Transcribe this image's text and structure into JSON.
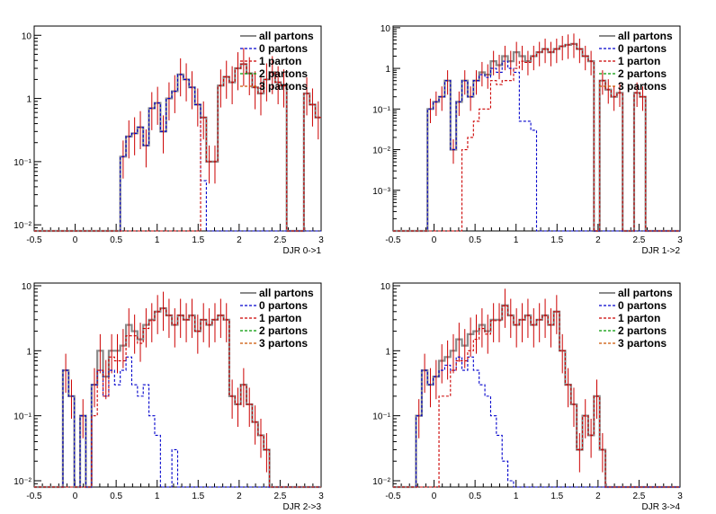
{
  "style": {
    "colors": {
      "all_partons": "#8a8a8a",
      "p0": "#0000cc",
      "p1": "#cc0000",
      "p2": "#009900",
      "p3": "#cc5500",
      "errorbar": "#cc0000",
      "axis": "#000000"
    }
  },
  "chart_data": [
    {
      "type": "histogram",
      "xlabel": "DJR 0->1",
      "x_ticks": [
        "-0.5",
        "0",
        "0.5",
        "1",
        "1.5",
        "2",
        "2.5",
        "3"
      ],
      "y_ticks": [
        "10⁻²",
        "10⁻¹",
        "1",
        "10"
      ],
      "xlim": [
        -0.5,
        3.0
      ],
      "ylim": [
        0.008,
        14
      ],
      "y_scale": "log",
      "legend_position": "top-right",
      "bins": 50,
      "series": [
        {
          "name": "all partons",
          "values": [
            0,
            0,
            0,
            0,
            0,
            0,
            0,
            0,
            0,
            0,
            0,
            0,
            0,
            0,
            0,
            0.12,
            0.25,
            0.28,
            0.35,
            0.18,
            0.7,
            0.85,
            0.3,
            1.0,
            1.3,
            2.4,
            2.0,
            1.5,
            0.8,
            0.5,
            0.1,
            0.1,
            1.6,
            2.2,
            1.8,
            3.0,
            3.5,
            2.5,
            1.5,
            1.2,
            2.0,
            2.6,
            1.8,
            1.6,
            0,
            0,
            0,
            1.2,
            0.8,
            0.5
          ]
        },
        {
          "name": "0 partons",
          "values": [
            0,
            0,
            0,
            0,
            0,
            0,
            0,
            0,
            0,
            0,
            0,
            0,
            0,
            0,
            0,
            0.12,
            0.25,
            0.28,
            0.35,
            0.18,
            0.7,
            0.85,
            0.3,
            1.0,
            1.3,
            2.4,
            2.0,
            1.5,
            0.8,
            0.05,
            0,
            0,
            0,
            0,
            0,
            0,
            0,
            0,
            0,
            0,
            0,
            0,
            0,
            0,
            0,
            0,
            0,
            0,
            0,
            0
          ]
        },
        {
          "name": "1 parton",
          "values": [
            0,
            0,
            0,
            0,
            0,
            0,
            0,
            0,
            0,
            0,
            0,
            0,
            0,
            0,
            0,
            0,
            0,
            0,
            0,
            0,
            0,
            0,
            0,
            0,
            0,
            0,
            0,
            0,
            0,
            0.5,
            0.1,
            0.1,
            1.6,
            2.2,
            1.8,
            3.0,
            3.5,
            2.5,
            1.5,
            1.2,
            2.0,
            2.6,
            1.8,
            1.6,
            0,
            0,
            0,
            1.2,
            0.8,
            0.5
          ]
        },
        {
          "name": "2 partons",
          "values": []
        },
        {
          "name": "3 partons",
          "values": []
        }
      ]
    },
    {
      "type": "histogram",
      "xlabel": "DJR 1->2",
      "x_ticks": [
        "-0.5",
        "0",
        "0.5",
        "1",
        "1.5",
        "2",
        "2.5",
        "3"
      ],
      "y_ticks": [
        "10⁻³",
        "10⁻²",
        "10⁻¹",
        "1",
        "10"
      ],
      "xlim": [
        -0.5,
        3.0
      ],
      "ylim": [
        0.0001,
        11
      ],
      "y_scale": "log",
      "legend_position": "top-right",
      "bins": 50,
      "series": [
        {
          "name": "all partons",
          "values": [
            0,
            0,
            0,
            0,
            0,
            0,
            0.1,
            0.15,
            0.2,
            0.5,
            0.01,
            0.15,
            0.5,
            0.2,
            0.5,
            0.8,
            0.7,
            1.5,
            1.2,
            2.0,
            1.5,
            2.5,
            2.0,
            1.5,
            2.0,
            2.5,
            3.0,
            2.5,
            3.0,
            3.5,
            3.8,
            4.0,
            3.0,
            2.0,
            1.5,
            0,
            0.5,
            0.3,
            0.2,
            0.25,
            0,
            0,
            0.25,
            0.2,
            0,
            0,
            0,
            0,
            0,
            0
          ]
        },
        {
          "name": "0 partons",
          "values": [
            0,
            0,
            0,
            0,
            0,
            0,
            0.1,
            0.15,
            0.2,
            0.5,
            0.01,
            0.15,
            0.5,
            0.2,
            0.5,
            0.7,
            0.6,
            1.0,
            0.8,
            1.5,
            1.0,
            0.8,
            0.05,
            0.05,
            0.03,
            0,
            0,
            0,
            0,
            0,
            0,
            0,
            0,
            0,
            0,
            0,
            0,
            0,
            0,
            0,
            0,
            0,
            0,
            0,
            0,
            0,
            0,
            0,
            0,
            0
          ]
        },
        {
          "name": "1 parton",
          "values": [
            0,
            0,
            0,
            0,
            0,
            0,
            0,
            0,
            0,
            0,
            0,
            0,
            0.01,
            0.02,
            0.05,
            0.1,
            0.1,
            0.5,
            0.4,
            0.5,
            0.5,
            1.0,
            1.5,
            1.4,
            2.0,
            2.5,
            3.0,
            2.5,
            3.0,
            3.5,
            3.8,
            4.0,
            3.0,
            2.0,
            1.5,
            0,
            0.5,
            0.3,
            0.2,
            0.25,
            0,
            0,
            0.25,
            0.2,
            0,
            0,
            0,
            0,
            0,
            0
          ]
        },
        {
          "name": "2 partons",
          "values": []
        },
        {
          "name": "3 partons",
          "values": []
        }
      ]
    },
    {
      "type": "histogram",
      "xlabel": "DJR 2->3",
      "x_ticks": [
        "-0.5",
        "0",
        "0.5",
        "1",
        "1.5",
        "2",
        "2.5",
        "3"
      ],
      "y_ticks": [
        "10⁻²",
        "10⁻¹",
        "1",
        "10"
      ],
      "xlim": [
        -0.5,
        3.0
      ],
      "ylim": [
        0.008,
        11
      ],
      "y_scale": "log",
      "legend_position": "top-right",
      "bins": 50,
      "series": [
        {
          "name": "all partons",
          "values": [
            0,
            0,
            0,
            0,
            0,
            0.5,
            0.2,
            0,
            0.1,
            0,
            0.3,
            1.0,
            0.4,
            1.0,
            1.0,
            1.2,
            2.5,
            2.0,
            1.5,
            2.5,
            3.0,
            4.0,
            4.5,
            3.5,
            2.5,
            3.5,
            3.0,
            3.5,
            2.0,
            3.0,
            2.5,
            3.0,
            3.5,
            3.0,
            0.2,
            0.15,
            0.3,
            0.15,
            0.08,
            0.05,
            0.03,
            0,
            0,
            0,
            0,
            0,
            0,
            0,
            0,
            0
          ]
        },
        {
          "name": "0 partons",
          "values": [
            0,
            0,
            0,
            0,
            0,
            0.5,
            0.2,
            0,
            0.1,
            0,
            0.3,
            0.5,
            0.2,
            0.5,
            0.3,
            0.5,
            0.8,
            0.3,
            0.2,
            0.3,
            0.1,
            0.05,
            0,
            0,
            0.03,
            0,
            0,
            0,
            0,
            0,
            0,
            0,
            0,
            0,
            0,
            0,
            0,
            0,
            0,
            0,
            0,
            0,
            0,
            0,
            0,
            0,
            0,
            0,
            0,
            0
          ]
        },
        {
          "name": "1 parton",
          "values": [
            0,
            0,
            0,
            0,
            0,
            0,
            0,
            0,
            0,
            0,
            0.1,
            0.5,
            0.2,
            0.8,
            0.7,
            0.7,
            1.7,
            1.7,
            1.3,
            2.2,
            2.9,
            4.0,
            4.5,
            3.5,
            2.5,
            3.5,
            3.0,
            3.5,
            2.0,
            3.0,
            2.5,
            3.0,
            3.5,
            3.0,
            0.2,
            0.15,
            0.3,
            0.15,
            0.08,
            0.05,
            0.03,
            0,
            0,
            0,
            0,
            0,
            0,
            0,
            0,
            0
          ]
        },
        {
          "name": "2 partons",
          "values": []
        },
        {
          "name": "3 partons",
          "values": []
        }
      ]
    },
    {
      "type": "histogram",
      "xlabel": "DJR 3->4",
      "x_ticks": [
        "-0.5",
        "0",
        "0.5",
        "1",
        "1.5",
        "2",
        "2.5",
        "3"
      ],
      "y_ticks": [
        "10⁻²",
        "10⁻¹",
        "1",
        "10"
      ],
      "xlim": [
        -0.5,
        3.0
      ],
      "ylim": [
        0.008,
        11
      ],
      "y_scale": "log",
      "legend_position": "top-right",
      "bins": 50,
      "series": [
        {
          "name": "all partons",
          "values": [
            0,
            0,
            0,
            0,
            0.1,
            0.5,
            0.3,
            0.4,
            0.7,
            0.8,
            1.0,
            1.5,
            1.2,
            1.8,
            2.0,
            2.5,
            2.0,
            3.0,
            3.0,
            5.0,
            3.5,
            2.5,
            3.0,
            3.5,
            2.5,
            3.0,
            3.5,
            2.5,
            4.0,
            1.0,
            0.3,
            0.15,
            0.03,
            0.1,
            0.05,
            0.2,
            0.03,
            0,
            0,
            0,
            0,
            0,
            0,
            0,
            0,
            0,
            0,
            0,
            0,
            0
          ]
        },
        {
          "name": "0 partons",
          "values": [
            0,
            0,
            0,
            0,
            0.1,
            0.5,
            0.3,
            0.4,
            0.5,
            0.6,
            0.5,
            0.8,
            0.5,
            0.8,
            0.5,
            0.3,
            0.2,
            0.1,
            0.05,
            0.02,
            0.01,
            0,
            0,
            0,
            0,
            0,
            0,
            0,
            0,
            0,
            0,
            0,
            0,
            0,
            0,
            0,
            0,
            0,
            0,
            0,
            0,
            0,
            0,
            0,
            0,
            0,
            0,
            0,
            0,
            0
          ]
        },
        {
          "name": "1 parton",
          "values": [
            0,
            0,
            0,
            0,
            0,
            0,
            0,
            0,
            0.2,
            0.2,
            0.5,
            0.7,
            0.7,
            1.0,
            1.5,
            2.2,
            1.8,
            2.9,
            2.9,
            4.9,
            3.5,
            2.5,
            3.0,
            3.5,
            2.5,
            3.0,
            3.5,
            2.5,
            4.0,
            1.0,
            0.3,
            0.15,
            0.03,
            0.1,
            0.05,
            0.2,
            0.03,
            0,
            0,
            0,
            0,
            0,
            0,
            0,
            0,
            0,
            0,
            0,
            0,
            0
          ]
        },
        {
          "name": "2 partons",
          "values": []
        },
        {
          "name": "3 partons",
          "values": []
        }
      ]
    }
  ]
}
